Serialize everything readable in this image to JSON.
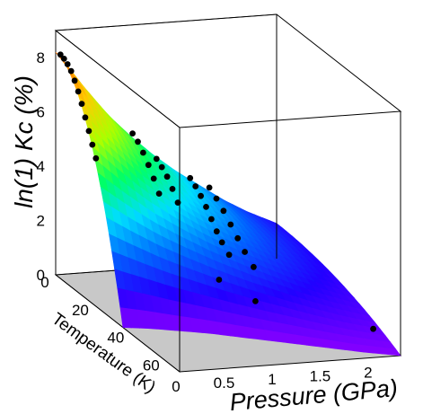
{
  "chart_data": {
    "type": "surface3d",
    "title": "",
    "axes": {
      "x": {
        "label": "Pressure (GPa)",
        "ticks": [
          "0",
          "0.5",
          "1",
          "1.5",
          "2"
        ],
        "range": [
          0,
          2.3
        ]
      },
      "y": {
        "label": "Temperature (K)",
        "ticks": [
          "0",
          "20",
          "40",
          "60"
        ],
        "range": [
          0,
          70
        ]
      },
      "z": {
        "label": "ln(1) Kc (%)",
        "ticks": [
          "0",
          "2",
          "4",
          "6",
          "8"
        ],
        "range": [
          0,
          9
        ]
      }
    },
    "colormap": [
      "#8800ff",
      "#2200ff",
      "#0066ff",
      "#00ddff",
      "#00ff66",
      "#aaff00",
      "#ffcc00",
      "#ff6600"
    ],
    "floor_color": "#c8c8c8",
    "grid": false,
    "legend": "none",
    "surface_curve": {
      "pressure": [
        0,
        0.25,
        0.5,
        0.75,
        1.0,
        1.25,
        1.5,
        1.75,
        2.0,
        2.3
      ],
      "kc_at_t0": [
        8.2,
        7.0,
        5.9,
        5.0,
        4.2,
        3.5,
        2.9,
        2.3,
        1.8,
        1.3
      ],
      "temperature_scale": [
        38,
        40,
        43,
        46,
        50,
        54,
        58,
        62,
        66,
        70
      ]
    },
    "series": [
      {
        "points": [
          [
            0.05,
            0,
            8.1
          ],
          [
            0.05,
            2,
            8.05
          ],
          [
            0.05,
            4,
            7.95
          ],
          [
            0.05,
            6,
            7.8
          ],
          [
            0.05,
            8,
            7.55
          ],
          [
            0.05,
            10,
            7.25
          ],
          [
            0.05,
            12,
            6.9
          ],
          [
            0.05,
            14,
            6.5
          ],
          [
            0.05,
            16,
            6.1
          ],
          [
            0.05,
            18,
            5.7
          ],
          [
            0.05,
            20,
            5.3
          ],
          [
            0.8,
            0,
            5.0
          ],
          [
            0.8,
            3,
            4.85
          ],
          [
            0.8,
            6,
            4.6
          ],
          [
            0.8,
            9,
            4.3
          ],
          [
            0.8,
            12,
            3.95
          ],
          [
            0.8,
            15,
            3.55
          ],
          [
            1.05,
            0,
            4.0
          ],
          [
            1.05,
            3,
            3.85
          ],
          [
            1.05,
            6,
            3.65
          ],
          [
            1.05,
            9,
            3.35
          ],
          [
            1.05,
            12,
            3.0
          ],
          [
            1.4,
            0,
            3.2
          ],
          [
            1.4,
            3,
            3.05
          ],
          [
            1.4,
            6,
            2.85
          ],
          [
            1.4,
            9,
            2.6
          ],
          [
            1.4,
            12,
            2.3
          ],
          [
            1.4,
            15,
            2.0
          ],
          [
            1.4,
            18,
            1.75
          ],
          [
            1.4,
            22,
            1.5
          ],
          [
            1.6,
            0,
            2.8
          ],
          [
            1.6,
            4,
            2.6
          ],
          [
            1.6,
            8,
            2.35
          ],
          [
            1.6,
            12,
            2.05
          ],
          [
            1.6,
            16,
            1.75
          ],
          [
            1.6,
            20,
            1.45
          ],
          [
            1.6,
            25,
            1.15
          ],
          [
            1.0,
            38,
            1.5
          ],
          [
            1.25,
            45,
            1.0
          ],
          [
            2.2,
            60,
            0.5
          ]
        ]
      }
    ]
  }
}
